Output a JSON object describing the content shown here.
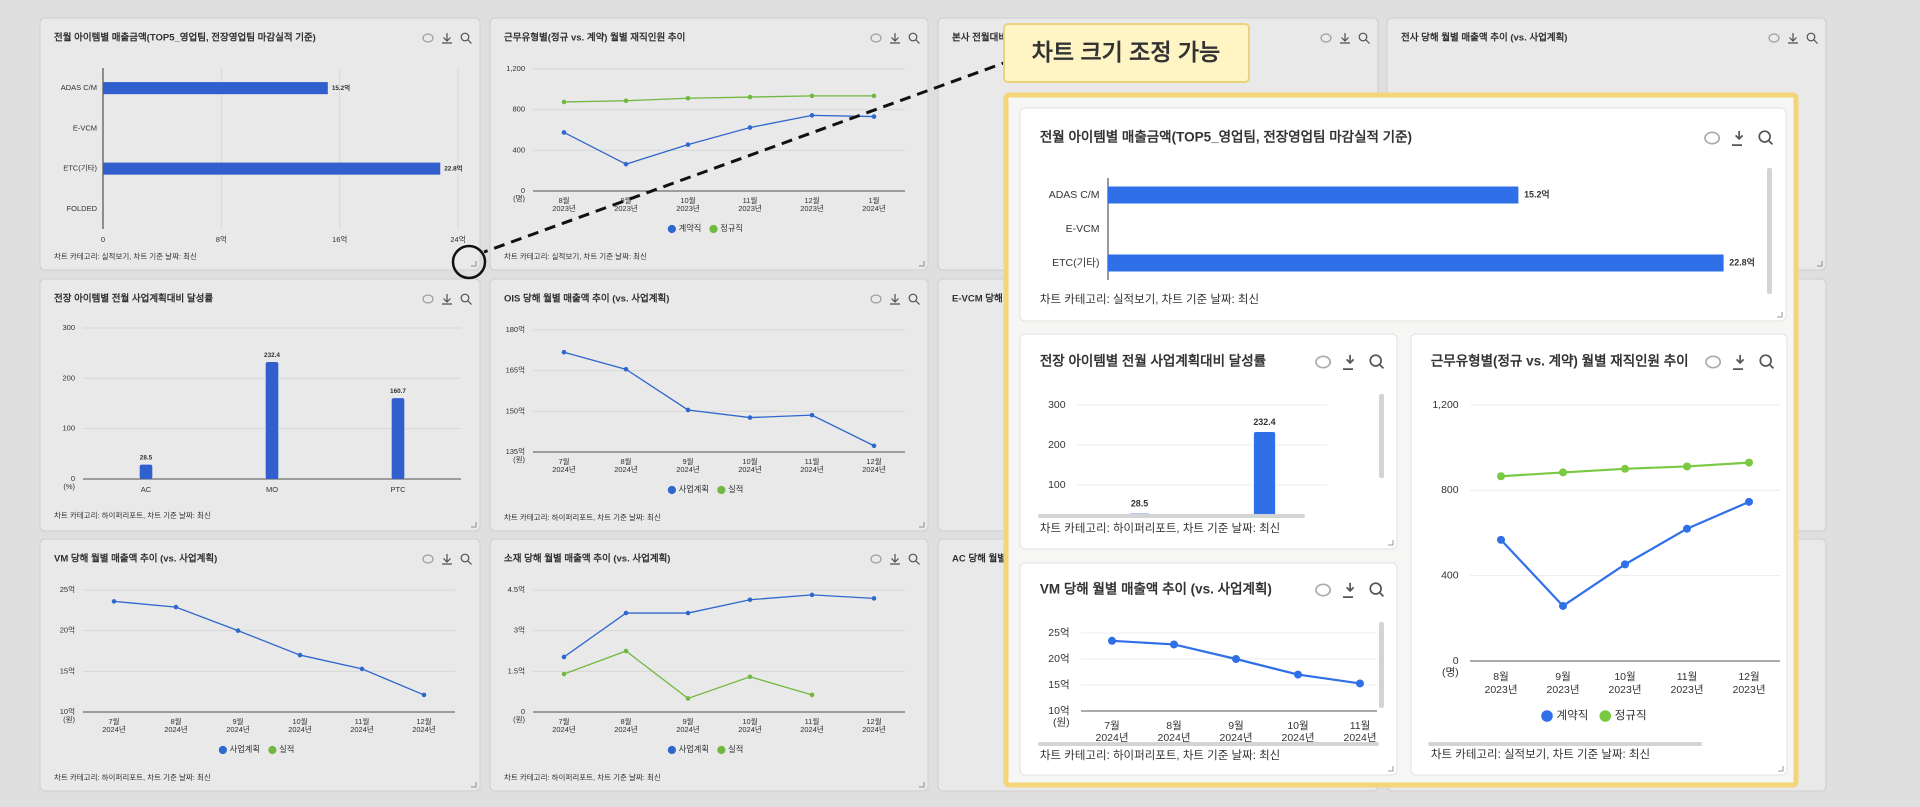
{
  "callout": "차트 크기 조정 가능",
  "chart_data": [
    {
      "type": "bar",
      "horizontal": true,
      "title": "전월 아이템별 매출금액(TOP5_영업팀, 전장영업팀 마감실적 기준)",
      "categories": [
        "ADAS C/M",
        "E-VCM",
        "ETC(기타)",
        "FOLDED"
      ],
      "values": [
        15.2,
        null,
        22.8,
        null
      ],
      "value_labels": [
        "15.2억",
        null,
        "22.8억",
        null
      ],
      "color": "#3366e0",
      "xlim": [
        0,
        24
      ],
      "xticks": [
        0,
        {
          "value": 8,
          "label": "8억"
        },
        {
          "value": 16,
          "label": "16억"
        },
        {
          "value": 24,
          "label": "24억"
        }
      ],
      "grid": true,
      "footnote": "차트 카테고리: 실적보기, 차트 기준 날짜: 최신"
    },
    {
      "type": "line",
      "title": "근무유형별(정규 vs. 계약) 월별 재직인원 추이",
      "categories": [
        "8월",
        "9월",
        "10월",
        "11월",
        "12월",
        "1월"
      ],
      "category_years": [
        "2023년",
        "2023년",
        "2023년",
        "2023년",
        "2023년",
        "2024년"
      ],
      "y_unit": "(명)",
      "series": [
        {
          "name": "계약직",
          "color": "#2f6fe0",
          "values": [
            576,
            264,
            456,
            624,
            744,
            732
          ]
        },
        {
          "name": "정규직",
          "color": "#7ac943",
          "values": [
            876,
            888,
            912,
            924,
            936,
            936
          ]
        }
      ],
      "ylim": [
        0,
        1200
      ],
      "yticks": [
        0,
        400,
        800,
        {
          "value": 1200,
          "label": "1,200"
        }
      ],
      "grid": true,
      "footnote": "차트 카테고리: 실적보기, 차트 기준 날짜: 최신"
    },
    {
      "type": "card",
      "title": "본사 전월대비"
    },
    {
      "type": "card",
      "title": "전사 당해 월별 매출액 추이 (vs. 사업계획)"
    },
    {
      "type": "bar",
      "title": "전장 아이템별 전월 사업계획대비 달성률",
      "categories": [
        "AC",
        "MO",
        "PTC"
      ],
      "values": [
        28.5,
        232.4,
        160.7
      ],
      "color": "#3366e0",
      "y_unit": "(%)",
      "ylim": [
        0,
        300
      ],
      "yticks": [
        0,
        100,
        200,
        300
      ],
      "grid": true,
      "footnote": "차트 카테고리: 하이퍼리포트, 차트 기준 날짜: 최신"
    },
    {
      "type": "line",
      "title": "OIS 당해 월별 매출액 추이 (vs. 사업계획)",
      "categories": [
        "7월",
        "8월",
        "9월",
        "10월",
        "11월",
        "12월"
      ],
      "category_years": [
        "2024년",
        "2024년",
        "2024년",
        "2024년",
        "2024년",
        "2024년"
      ],
      "y_unit": "(원)",
      "series": [
        {
          "name": "사업계획",
          "color": "#2f6fe0",
          "values": [
            171.8,
            165.5,
            150.5,
            147.7,
            148.6,
            137.3
          ]
        },
        {
          "name": "실적",
          "color": "#7ac943",
          "values": [
            null,
            null,
            null,
            null,
            null,
            null
          ]
        }
      ],
      "ylim": [
        135,
        180
      ],
      "yticks": [
        {
          "value": 135,
          "label": "135억"
        },
        {
          "value": 150,
          "label": "150억"
        },
        {
          "value": 165,
          "label": "165억"
        },
        {
          "value": 180,
          "label": "180억"
        }
      ],
      "grid": true,
      "footnote": "차트 카테고리: 하이퍼리포트, 차트 기준 날짜: 최신"
    },
    {
      "type": "card",
      "title": "E-VCM 당해 월별 매출액 추이 (vs. 사업계획)"
    },
    {
      "type": "line",
      "title": "VM 당해 월별 매출액 추이 (vs. 사업계획)",
      "categories": [
        "7월",
        "8월",
        "9월",
        "10월",
        "11월",
        "12월"
      ],
      "category_years": [
        "2024년",
        "2024년",
        "2024년",
        "2024년",
        "2024년",
        "2024년"
      ],
      "y_unit": "(원)",
      "series": [
        {
          "name": "사업계획",
          "color": "#2f6fe0",
          "values": [
            23.6,
            22.9,
            20,
            17,
            15.3,
            12.1
          ]
        },
        {
          "name": "실적",
          "color": "#7ac943",
          "values": [
            null,
            null,
            null,
            null,
            null,
            null
          ]
        }
      ],
      "ylim": [
        10,
        25
      ],
      "yticks": [
        {
          "value": 10,
          "label": "10억"
        },
        {
          "value": 15,
          "label": "15억"
        },
        {
          "value": 20,
          "label": "20억"
        },
        {
          "value": 25,
          "label": "25억"
        }
      ],
      "grid": true,
      "footnote": "차트 카테고리: 하이퍼리포트, 차트 기준 날짜: 최신"
    },
    {
      "type": "line",
      "title": "소재 당해 월별 매출액 추이 (vs. 사업계획)",
      "categories": [
        "7월",
        "8월",
        "9월",
        "10월",
        "11월",
        "12월"
      ],
      "category_years": [
        "2024년",
        "2024년",
        "2024년",
        "2024년",
        "2024년",
        "2024년"
      ],
      "y_unit": "(원)",
      "series": [
        {
          "name": "사업계획",
          "color": "#2f6fe0",
          "values": [
            2.03,
            3.65,
            3.65,
            4.14,
            4.32,
            4.19
          ]
        },
        {
          "name": "실적",
          "color": "#7ac943",
          "values": [
            1.4,
            2.25,
            0.5,
            1.3,
            0.63,
            null
          ]
        }
      ],
      "ylim": [
        0,
        4.5
      ],
      "yticks": [
        0,
        {
          "value": 1.5,
          "label": "1.5억"
        },
        {
          "value": 3,
          "label": "3억"
        },
        {
          "value": 4.5,
          "label": "4.5억"
        }
      ],
      "grid": true,
      "footnote": "차트 카테고리: 하이퍼리포트, 차트 기준 날짜: 최신"
    },
    {
      "type": "card",
      "title": "AC 당해 월별 매출액 추이 (vs. 사업계획)"
    },
    {
      "type": "bar",
      "horizontal": true,
      "title": "전월 아이템별 매출금액(TOP5_영업팀, 전장영업팀 마감실적 기준)",
      "categories": [
        "ADAS C/M",
        "E-VCM",
        "ETC(기타)"
      ],
      "values": [
        15.2,
        null,
        22.8
      ],
      "value_labels": [
        "15.2억",
        null,
        "22.8억"
      ],
      "color": "#2f6fe8",
      "xlim": [
        0,
        24
      ],
      "footnote": "차트 카테고리: 실적보기, 차트 기준 날짜: 최신"
    },
    {
      "type": "bar",
      "title": "전장 아이템별 전월 사업계획대비 달성률",
      "categories": [
        null,
        null
      ],
      "values": [
        28.5,
        232.4
      ],
      "color": "#2f6fe8",
      "ylim": [
        0,
        300
      ],
      "yticks": [
        100,
        200,
        300
      ],
      "grid": true,
      "footnote": "차트 카테고리: 하이퍼리포트, 차트 기준 날짜: 최신"
    },
    {
      "type": "line",
      "title": "VM 당해 월별 매출액 추이 (vs. 사업계획)",
      "categories": [
        "7월",
        "8월",
        "9월",
        "10월",
        "11월"
      ],
      "category_years": [
        "2024년",
        "2024년",
        "2024년",
        "2024년",
        "2024년"
      ],
      "y_unit": "(원)",
      "series": [
        {
          "name": "사업계획",
          "color": "#2f6fe8",
          "values": [
            23.5,
            22.8,
            20,
            17,
            15.3
          ]
        }
      ],
      "ylim": [
        10,
        25
      ],
      "yticks": [
        {
          "value": 10,
          "label": "10억"
        },
        {
          "value": 15,
          "label": "15억"
        },
        {
          "value": 20,
          "label": "20억"
        },
        {
          "value": 25,
          "label": "25억"
        }
      ],
      "grid": true,
      "footnote": "차트 카테고리: 하이퍼리포트, 차트 기준 날짜: 최신"
    },
    {
      "type": "line",
      "title": "근무유형별(정규 vs. 계약) 월별 재직인원 추이",
      "categories": [
        "8월",
        "9월",
        "10월",
        "11월",
        "12월"
      ],
      "category_years": [
        "2023년",
        "2023년",
        "2023년",
        "2023년",
        "2023년"
      ],
      "y_unit": "(명)",
      "series": [
        {
          "name": "계약직",
          "color": "#2f6fe8",
          "values": [
            568,
            258,
            453,
            620,
            746
          ]
        },
        {
          "name": "정규직",
          "color": "#7ac943",
          "values": [
            866,
            884,
            901,
            912,
            930
          ]
        }
      ],
      "ylim": [
        0,
        1200
      ],
      "yticks": [
        0,
        400,
        800,
        {
          "value": 1200,
          "label": "1,200"
        }
      ],
      "grid": true,
      "footnote": "차트 카테고리: 실적보기, 차트 기준 날짜: 최신"
    }
  ]
}
